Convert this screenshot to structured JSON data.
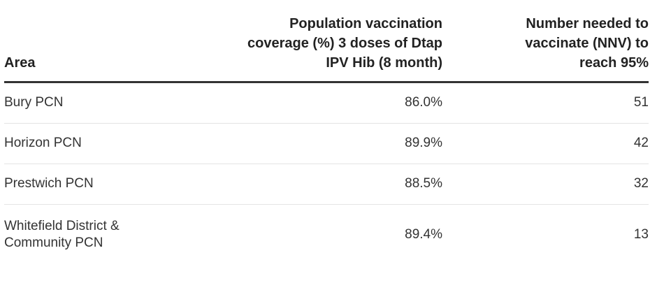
{
  "table": {
    "columns": [
      "Area",
      "Population vaccination coverage (%) 3 doses of Dtap IPV Hib (8 month)",
      "Number needed to vaccinate (NNV) to reach 95%"
    ],
    "rows": [
      {
        "area": "Bury PCN",
        "coverage": "86.0%",
        "nnv": "51"
      },
      {
        "area": "Horizon PCN",
        "coverage": "89.9%",
        "nnv": "42"
      },
      {
        "area": "Prestwich PCN",
        "coverage": "88.5%",
        "nnv": "32"
      },
      {
        "area": "Whitefield District & Community PCN",
        "coverage": "89.4%",
        "nnv": "13"
      }
    ]
  }
}
